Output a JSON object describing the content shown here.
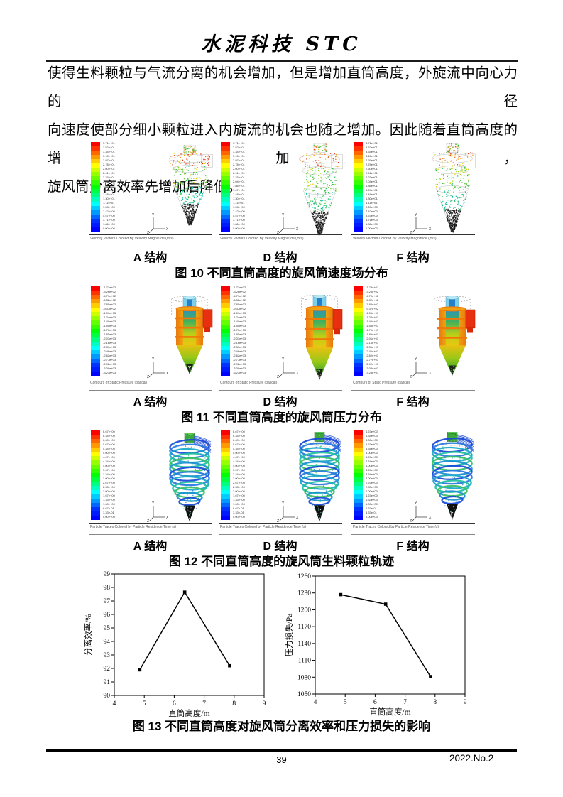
{
  "header": {
    "title": "水泥科技 STC"
  },
  "paragraph": {
    "lines": [
      "使得生料颗粒与气流分离的机会增加，但是增加直筒高度，外旋流中向心力的径",
      "向速度使部分细小颗粒进入内旋流的机会也随之增加。因此随着直筒高度的增加，",
      "旋风筒分离效率先增加后降低。"
    ]
  },
  "figures": {
    "fig10": {
      "caption": "图 10 不同直筒高度的旋风筒速度场分布",
      "panel_caption": "Velocity Vectors Colored By Velocity Magnitude (m/s)",
      "legend_labels": [
        "3.71e+01",
        "3.52e+01",
        "3.34e+01",
        "3.15e+01",
        "2.97e+01",
        "2.78e+01",
        "2.60e+01",
        "2.41e+01",
        "2.23e+01",
        "2.04e+01",
        "1.86e+01",
        "1.67e+01",
        "1.48e+01",
        "1.30e+01",
        "1.11e+01",
        "9.28e+00",
        "7.42e+00",
        "5.57e+00",
        "3.71e+00",
        "1.86e+00",
        "0.00e+00"
      ]
    },
    "fig11": {
      "caption": "图 11 不同直筒高度的旋风筒压力分布",
      "panel_caption": "Contours of Static Pressure (pascal)",
      "legend_labels": [
        "-1.73e+02",
        "-3.26e+02",
        "-4.79e+02",
        "-6.32e+02",
        "-7.85e+02",
        "-9.37e+02",
        "-1.09e+03",
        "-1.24e+03",
        "-1.40e+03",
        "-1.55e+03",
        "-1.70e+03",
        "-1.85e+03",
        "-2.01e+03",
        "-2.16e+03",
        "-2.31e+03",
        "-2.46e+03",
        "-2.62e+03",
        "-2.77e+03",
        "-2.92e+03",
        "-3.08e+03",
        "-3.23e+03"
      ]
    },
    "fig12": {
      "caption": "图 12 不同直筒高度的旋风筒生料颗粒轨迹",
      "panel_caption": "Particle Traces Colored by Particle Residence Time (s)",
      "legend_labels": [
        "6.67e+00",
        "6.34e+00",
        "6.00e+00",
        "5.67e+00",
        "5.34e+00",
        "5.00e+00",
        "4.67e+00",
        "4.34e+00",
        "4.00e+00",
        "3.67e+00",
        "3.34e+00",
        "3.00e+00",
        "2.67e+00",
        "2.33e+00",
        "2.00e+00",
        "1.67e+00",
        "1.33e+00",
        "1.00e+00",
        "6.67e-01",
        "3.33e-01",
        "0.00e+00"
      ]
    },
    "fig13": {
      "caption": "图 13 不同直筒高度对旋风筒分离效率和压力损失的影响"
    }
  },
  "structure_labels": [
    "A 结构",
    "D 结构",
    "F 结构"
  ],
  "legend_colors": [
    "#ff0000",
    "#ff3300",
    "#ff6600",
    "#ff9900",
    "#ffcc00",
    "#ffff00",
    "#ccff00",
    "#99ff00",
    "#66ff00",
    "#33ff00",
    "#00ff00",
    "#00ff40",
    "#00ff80",
    "#00ffbf",
    "#00ffff",
    "#00ccff",
    "#0099ff",
    "#0066ff",
    "#0033ff",
    "#001aff",
    "#0000ff"
  ],
  "triad": {
    "x": "X",
    "y": "Y",
    "z": "Z"
  },
  "chart_data": [
    {
      "type": "line",
      "title": "",
      "xlabel": "直筒高度/m",
      "ylabel": "分离效率/%",
      "x": [
        4.85,
        6.35,
        7.85
      ],
      "y": [
        91.9,
        97.65,
        92.2
      ],
      "xlim": [
        4,
        9
      ],
      "ylim": [
        90,
        99
      ],
      "xticks": [
        4,
        5,
        6,
        7,
        8,
        9
      ],
      "yticks": [
        90,
        91,
        92,
        93,
        94,
        95,
        96,
        97,
        98,
        99
      ],
      "marker": "square",
      "line_color": "#000000",
      "grid": false,
      "legend": "none"
    },
    {
      "type": "line",
      "title": "",
      "xlabel": "直筒高度/m",
      "ylabel": "压力损失/Pa",
      "x": [
        4.85,
        6.35,
        7.85
      ],
      "y": [
        1227,
        1210,
        1081
      ],
      "xlim": [
        4,
        9
      ],
      "ylim": [
        1050,
        1260
      ],
      "xticks": [
        4,
        5,
        6,
        7,
        8,
        9
      ],
      "yticks": [
        1050,
        1080,
        1110,
        1140,
        1170,
        1200,
        1230,
        1260
      ],
      "marker": "square",
      "line_color": "#000000",
      "grid": false,
      "legend": "none"
    }
  ],
  "footer": {
    "page_number": "39",
    "issue": "2022.No.2"
  }
}
